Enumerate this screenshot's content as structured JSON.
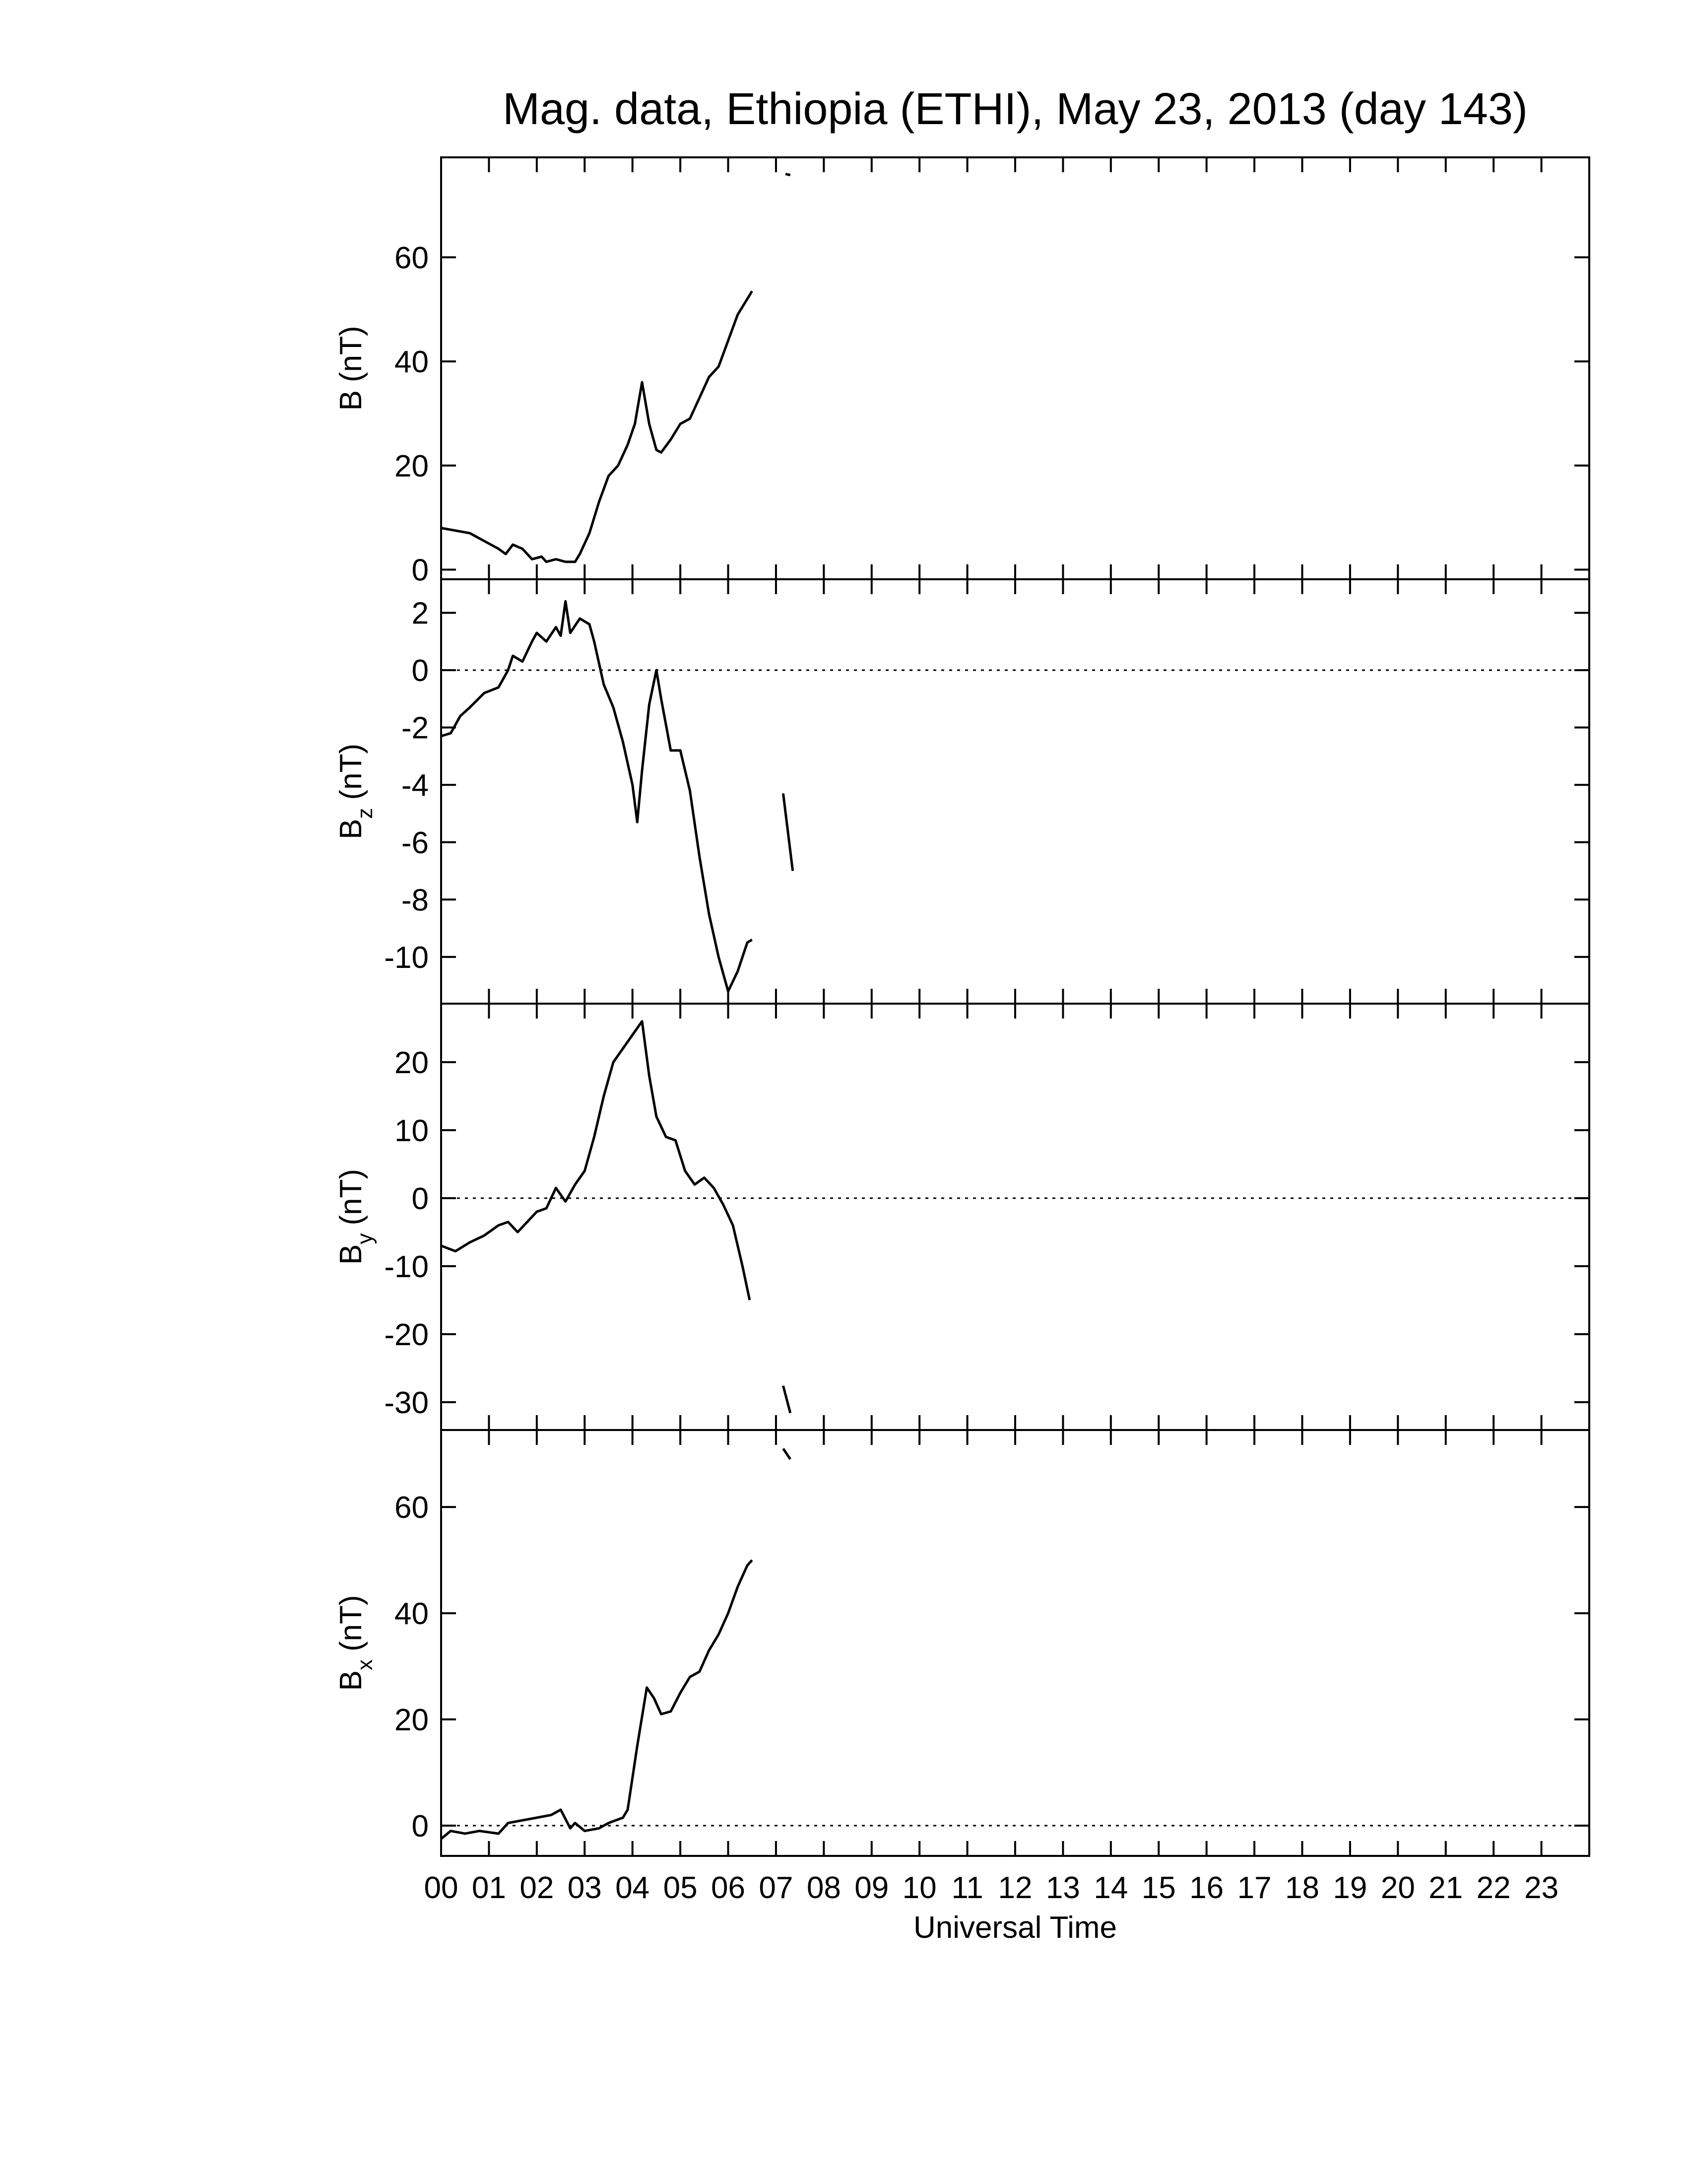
{
  "chart_data": [
    {
      "type": "line",
      "title": "Mag. data, Ethiopia (ETHI), May 23, 2013 (day 143)",
      "ylabel": "B",
      "ylabel_unit": "(nT)",
      "x": [
        0,
        0.3,
        0.6,
        0.9,
        1.2,
        1.35,
        1.5,
        1.7,
        1.9,
        2.1,
        2.2,
        2.4,
        2.6,
        2.8,
        2.9,
        3.1,
        3.3,
        3.5,
        3.7,
        3.9,
        4.05,
        4.2,
        4.35,
        4.5,
        4.6,
        4.8,
        5.0,
        5.2,
        5.4,
        5.6,
        5.8,
        6.0,
        6.2,
        6.4,
        6.5,
        null,
        7.2,
        7.3
      ],
      "series": [
        {
          "color": "#000000",
          "values": [
            8,
            7.5,
            7,
            5.5,
            4,
            3,
            4.8,
            4,
            2,
            2.5,
            1.5,
            2,
            1.5,
            1.5,
            3,
            7,
            13,
            18,
            20,
            24,
            28,
            36,
            28,
            23,
            22.5,
            25,
            28,
            29,
            33,
            37,
            39,
            44,
            49,
            52,
            53.5,
            null,
            76,
            75.8
          ]
        }
      ],
      "xlim": [
        0,
        24
      ],
      "ylim": [
        -1.85,
        79.2
      ],
      "yticks": [
        0,
        20,
        40,
        60
      ],
      "zero_line": false
    },
    {
      "type": "line",
      "ylabel": "B",
      "ylabel_sub": "z",
      "ylabel_unit": "(nT)",
      "x": [
        0,
        0.2,
        0.4,
        0.6,
        0.9,
        1.2,
        1.4,
        1.5,
        1.7,
        1.9,
        2.0,
        2.2,
        2.4,
        2.5,
        2.6,
        2.7,
        2.9,
        3.1,
        3.2,
        3.4,
        3.6,
        3.8,
        4.0,
        4.1,
        4.2,
        4.35,
        4.5,
        4.6,
        4.8,
        5.0,
        5.2,
        5.4,
        5.6,
        5.8,
        6.0,
        6.2,
        6.4,
        6.5,
        null,
        7.15,
        7.35
      ],
      "series": [
        {
          "color": "#000000",
          "values": [
            -2.3,
            -2.2,
            -1.6,
            -1.3,
            -0.8,
            -0.6,
            0,
            0.5,
            0.3,
            1,
            1.3,
            1.0,
            1.5,
            1.2,
            2.4,
            1.3,
            1.8,
            1.6,
            1,
            -0.5,
            -1.3,
            -2.5,
            -4,
            -5.3,
            -3.5,
            -1.2,
            0,
            -1,
            -2.8,
            -2.8,
            -4.2,
            -6.5,
            -8.5,
            -10,
            -11.2,
            -10.5,
            -9.5,
            -9.4,
            null,
            -4.3,
            -7.0
          ]
        }
      ],
      "xlim": [
        0,
        24
      ],
      "ylim": [
        -11.63,
        3.17
      ],
      "yticks": [
        -10,
        -8,
        -6,
        -4,
        -2,
        0,
        2
      ],
      "zero_line": true
    },
    {
      "type": "line",
      "ylabel": "B",
      "ylabel_sub": "y",
      "ylabel_unit": "(nT)",
      "x": [
        0,
        0.3,
        0.6,
        0.9,
        1.2,
        1.4,
        1.6,
        1.8,
        2.0,
        2.2,
        2.4,
        2.6,
        2.8,
        3.0,
        3.2,
        3.4,
        3.6,
        3.8,
        4.0,
        4.2,
        4.35,
        4.5,
        4.7,
        4.9,
        5.1,
        5.3,
        5.5,
        5.7,
        5.9,
        6.1,
        6.3,
        6.45,
        null,
        7.15,
        7.3
      ],
      "series": [
        {
          "color": "#000000",
          "values": [
            -7,
            -7.8,
            -6.5,
            -5.5,
            -4,
            -3.5,
            -5,
            -3.5,
            -2,
            -1.5,
            1.5,
            -0.5,
            2,
            4,
            9,
            15,
            20,
            22,
            24,
            26,
            18,
            12,
            9,
            8.5,
            4,
            2,
            3,
            1.5,
            -1,
            -4,
            -10,
            -15,
            null,
            -27.6,
            -31.6
          ]
        }
      ],
      "xlim": [
        0,
        24
      ],
      "ylim": [
        -34.1,
        28.6
      ],
      "yticks": [
        -30,
        -20,
        -10,
        0,
        10,
        20
      ],
      "zero_line": true
    },
    {
      "type": "line",
      "ylabel": "B",
      "ylabel_sub": "x",
      "ylabel_unit": "(nT)",
      "xlabel": "Universal Time",
      "x": [
        0,
        0.2,
        0.5,
        0.8,
        1.2,
        1.4,
        1.7,
        2.0,
        2.3,
        2.5,
        2.7,
        2.8,
        3.0,
        3.3,
        3.5,
        3.8,
        3.9,
        4.1,
        4.3,
        4.45,
        4.6,
        4.8,
        5.0,
        5.2,
        5.4,
        5.6,
        5.8,
        6.0,
        6.2,
        6.4,
        6.5,
        null,
        7.15,
        7.3
      ],
      "series": [
        {
          "color": "#000000",
          "values": [
            -2.5,
            -1,
            -1.5,
            -1,
            -1.5,
            0.5,
            1,
            1.5,
            2,
            3,
            -0.5,
            0.5,
            -1,
            -0.5,
            0.5,
            1.5,
            3,
            15,
            26,
            24,
            21,
            21.5,
            25,
            28,
            29,
            33,
            36,
            40,
            45,
            49,
            50,
            null,
            71,
            69
          ]
        }
      ],
      "xlim": [
        0,
        24
      ],
      "ylim": [
        -5.7,
        74.5
      ],
      "yticks": [
        0,
        20,
        40,
        60
      ],
      "zero_line": true,
      "xticks": [
        {
          "value": 0,
          "label": "00"
        },
        {
          "value": 1,
          "label": "01"
        },
        {
          "value": 2,
          "label": "02"
        },
        {
          "value": 3,
          "label": "03"
        },
        {
          "value": 4,
          "label": "04"
        },
        {
          "value": 5,
          "label": "05"
        },
        {
          "value": 6,
          "label": "06"
        },
        {
          "value": 7,
          "label": "07"
        },
        {
          "value": 8,
          "label": "08"
        },
        {
          "value": 9,
          "label": "09"
        },
        {
          "value": 10,
          "label": "10"
        },
        {
          "value": 11,
          "label": "11"
        },
        {
          "value": 12,
          "label": "12"
        },
        {
          "value": 13,
          "label": "13"
        },
        {
          "value": 14,
          "label": "14"
        },
        {
          "value": 15,
          "label": "15"
        },
        {
          "value": 16,
          "label": "16"
        },
        {
          "value": 17,
          "label": "17"
        },
        {
          "value": 18,
          "label": "18"
        },
        {
          "value": 19,
          "label": "19"
        },
        {
          "value": 20,
          "label": "20"
        },
        {
          "value": 21,
          "label": "21"
        },
        {
          "value": 22,
          "label": "22"
        },
        {
          "value": 23,
          "label": "23"
        }
      ]
    }
  ]
}
